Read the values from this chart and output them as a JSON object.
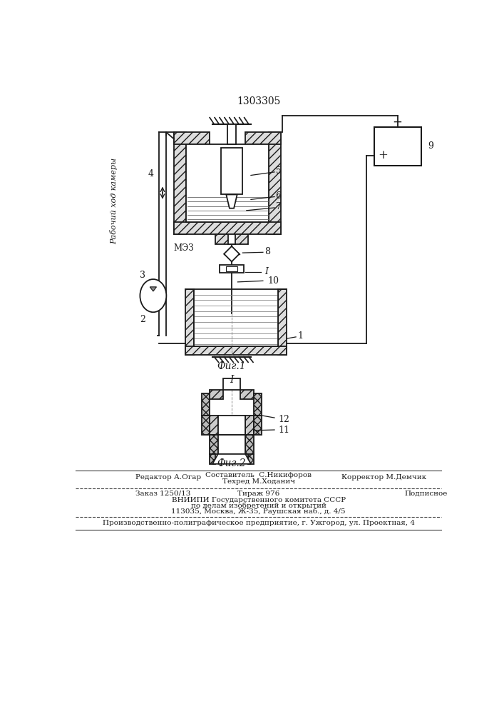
{
  "title": "1303305",
  "fig1_label": "Фиг.1",
  "fig2_label": "Фиг.2",
  "section_label": "I",
  "rotated_label": "Рабочий ход камеры",
  "bg_color": "#ffffff",
  "lc": "#1a1a1a",
  "footer": {
    "editor": "Редактор А.Огар",
    "composer": "Составитель  С.Никифоров",
    "techred": "Техред М.Ходанич",
    "corrector": "Корректор М.Демчик",
    "zakaz": "Заказ 1250/13",
    "tirazh": "Тираж 976",
    "podpisnoe": "Подписное",
    "vniipи1": "ВНИИПИ Государственного комитета СССР",
    "vniipи2": "по делам изобретений и открытий",
    "vniipи3": "113035, Москва, Ж-35, Раушская наб., д. 4/5",
    "production": "Производственно-полиграфическое предприятие, г. Ужгород, ул. Проектная, 4"
  }
}
